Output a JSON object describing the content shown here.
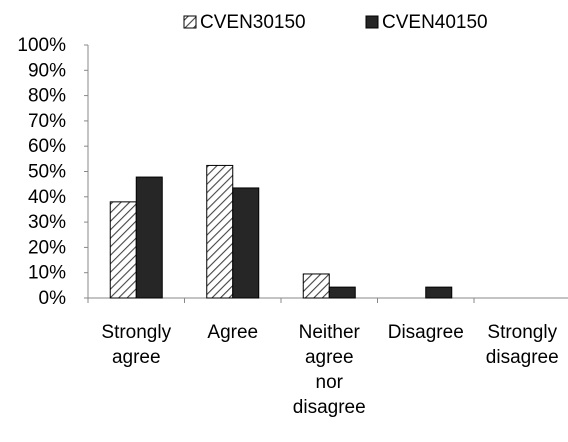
{
  "chart_data": {
    "type": "bar",
    "categories": [
      [
        "Strongly",
        "agree"
      ],
      [
        "Agree"
      ],
      [
        "Neither",
        "agree",
        "nor",
        "disagree"
      ],
      [
        "Disagree"
      ],
      [
        "Strongly",
        "disagree"
      ]
    ],
    "series": [
      {
        "name": "CVEN30150",
        "values": [
          38,
          52.4,
          9.5,
          0,
          0
        ],
        "fill": "hatch"
      },
      {
        "name": "CVEN40150",
        "values": [
          47.8,
          43.5,
          4.3,
          4.3,
          0
        ],
        "fill": "solid"
      }
    ],
    "ylim": [
      0,
      100
    ],
    "yticks": [
      "0%",
      "10%",
      "20%",
      "30%",
      "40%",
      "50%",
      "60%",
      "70%",
      "80%",
      "90%",
      "100%"
    ],
    "legend_position": "top",
    "grid": false,
    "colors": {
      "solid": "#262626",
      "hatch_line": "#444444",
      "hatch_bg": "#ffffff",
      "axis": "#888888",
      "text": "#000000"
    }
  }
}
